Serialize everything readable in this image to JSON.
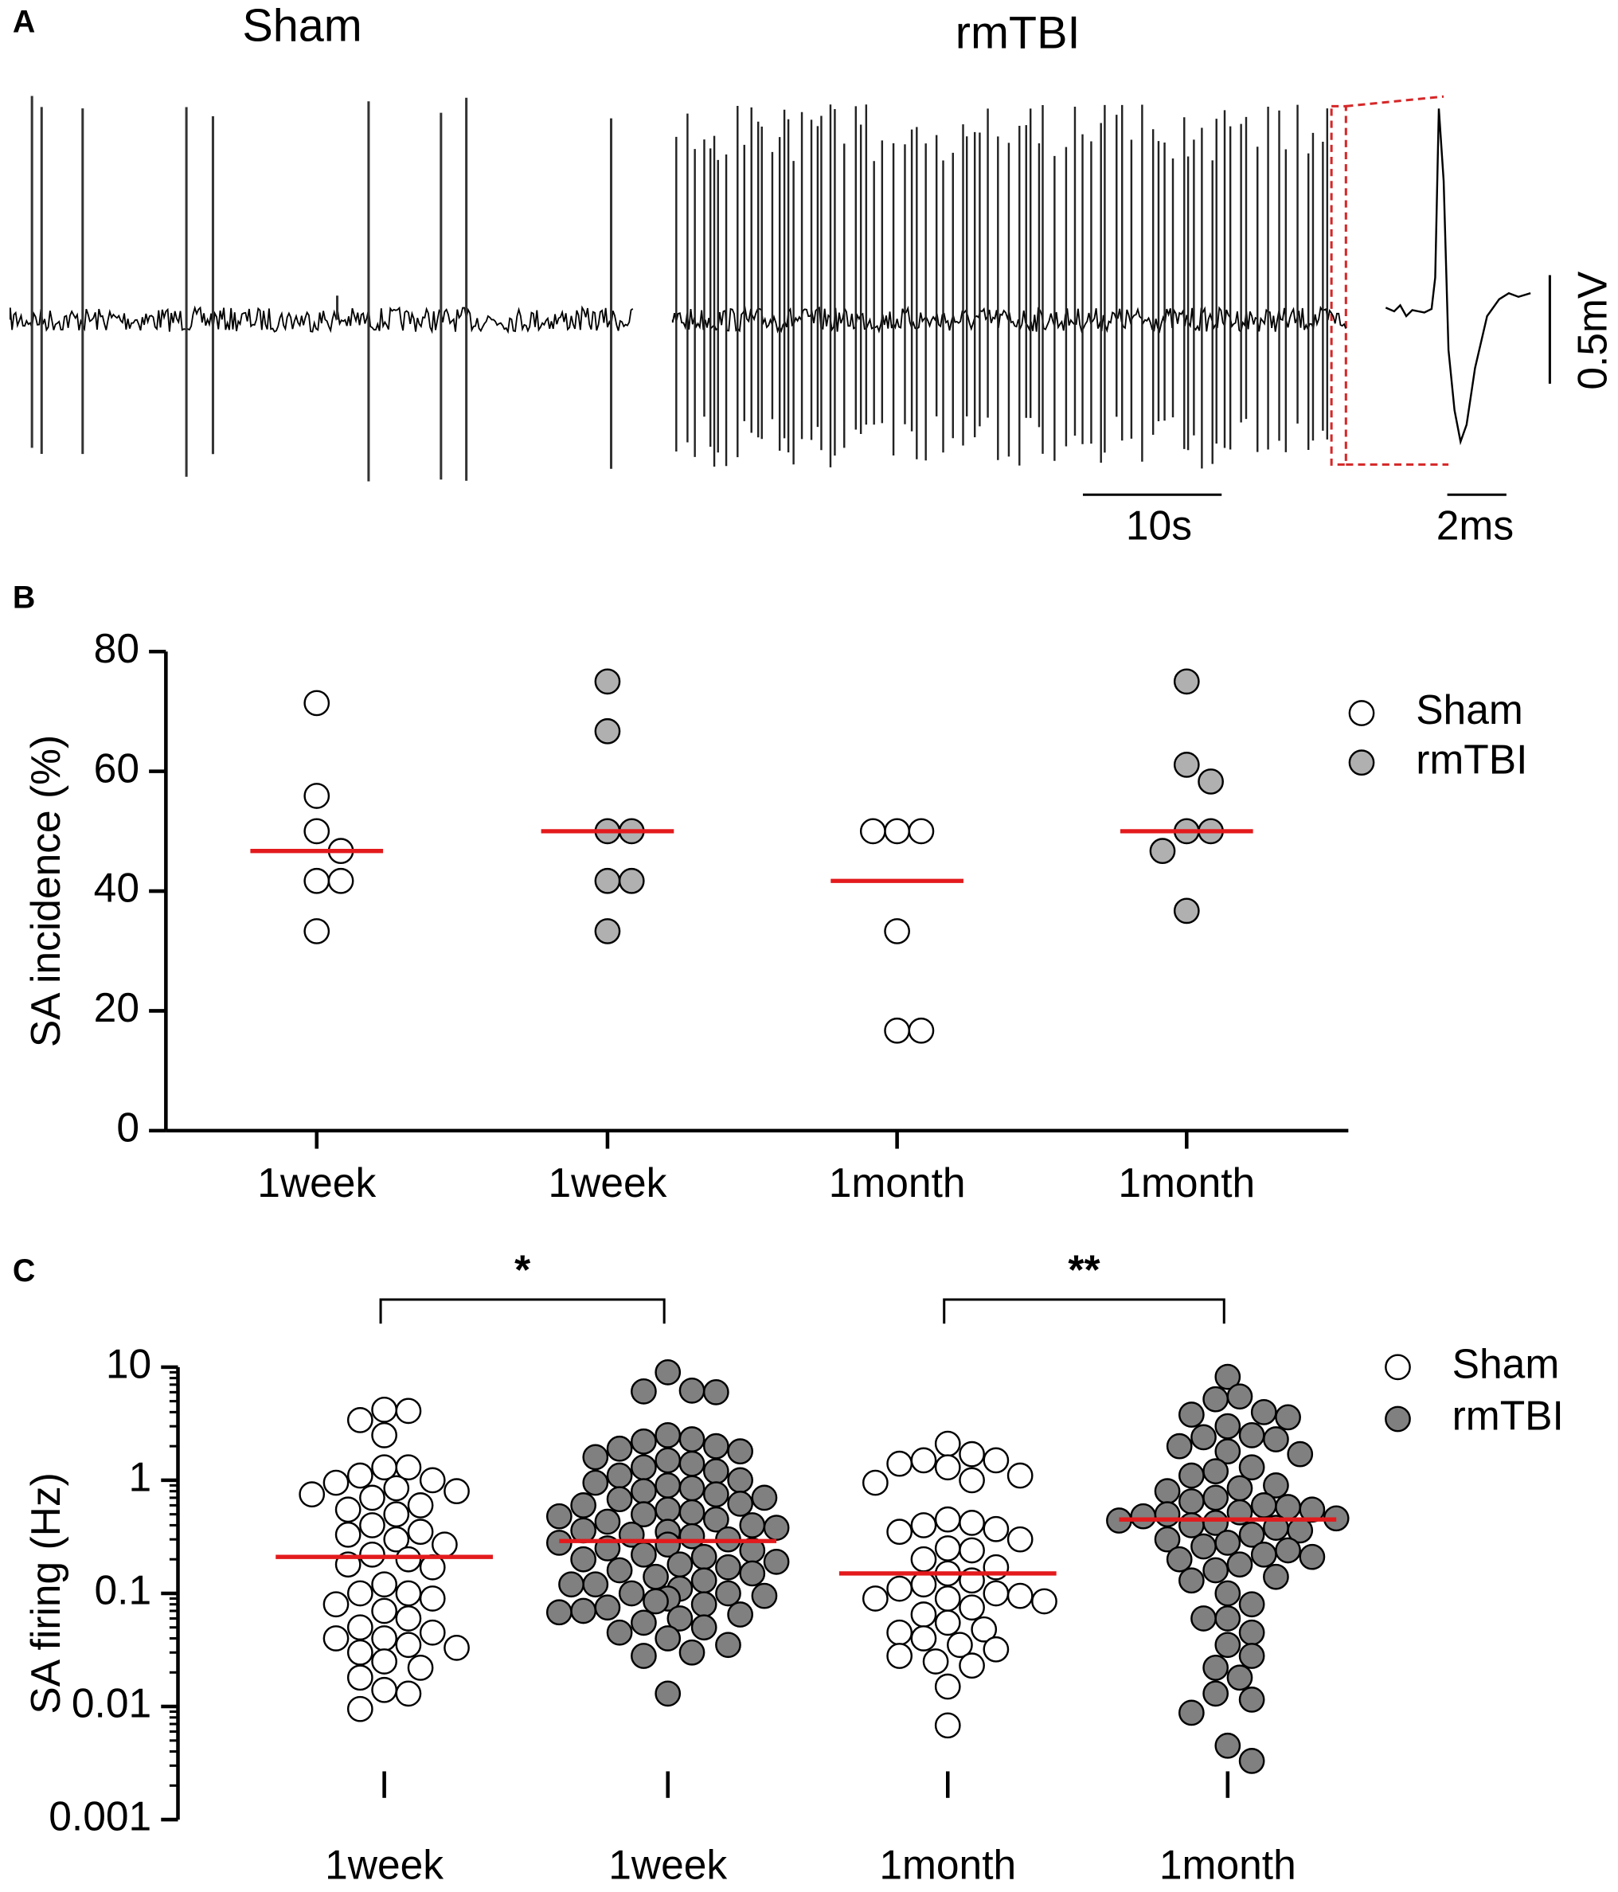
{
  "panel_a": {
    "label": "A",
    "left_title": "Sham",
    "right_title": "rmTBI",
    "time_scale": "10s",
    "inset_time_scale": "2ms",
    "voltage_scale": "0.5mV"
  },
  "chart_data": [
    {
      "type": "scatter",
      "panel": "B",
      "ylabel": "SA incidence (%)",
      "categories": [
        "1week",
        "1week",
        "1month",
        "1month"
      ],
      "ylim": [
        0,
        80
      ],
      "yticks": [
        0,
        20,
        40,
        60,
        80
      ],
      "log": false,
      "mean_color": "#e31a1c",
      "legend": "top-right",
      "series": [
        {
          "name": "Sham",
          "color": "#ffffff",
          "values": [
            [
              71.4,
              55.9,
              50,
              46.7,
              41.7,
              41.7,
              33.3
            ],
            null,
            [
              50,
              50,
              50,
              33.3,
              16.7,
              16.7
            ],
            null
          ],
          "means": [
            46.7,
            null,
            41.7,
            null
          ]
        },
        {
          "name": "rmTBI",
          "color": "#b0b0b0",
          "values": [
            null,
            [
              75,
              66.7,
              50,
              50,
              41.7,
              41.7,
              33.3
            ],
            null,
            [
              75,
              61.1,
              58.3,
              50,
              50,
              46.7,
              36.7
            ]
          ],
          "means": [
            null,
            50,
            null,
            50
          ]
        }
      ]
    },
    {
      "type": "scatter",
      "panel": "C",
      "ylabel": "SA firing (Hz)",
      "categories": [
        "1week",
        "1week",
        "1month",
        "1month"
      ],
      "ylim": [
        0.001,
        10
      ],
      "yticks": [
        0.001,
        0.01,
        0.1,
        1,
        10
      ],
      "log": true,
      "mean_color": "#e31a1c",
      "legend": "top-right",
      "annotations": [
        "*",
        "**"
      ],
      "series": [
        {
          "name": "Sham",
          "color": "#ffffff",
          "values": [
            [
              4.2,
              4.1,
              3.4,
              2.5,
              1.3,
              1.3,
              1.1,
              1.0,
              0.95,
              0.85,
              0.8,
              0.75,
              0.7,
              0.6,
              0.55,
              0.5,
              0.4,
              0.35,
              0.33,
              0.3,
              0.27,
              0.22,
              0.2,
              0.18,
              0.17,
              0.12,
              0.1,
              0.1,
              0.09,
              0.08,
              0.07,
              0.06,
              0.05,
              0.045,
              0.04,
              0.04,
              0.035,
              0.033,
              0.03,
              0.025,
              0.022,
              0.018,
              0.014,
              0.013,
              0.0095
            ],
            null,
            [
              2.1,
              1.7,
              1.5,
              1.5,
              1.4,
              1.3,
              1.1,
              1.0,
              0.95,
              0.45,
              0.42,
              0.4,
              0.37,
              0.35,
              0.3,
              0.25,
              0.24,
              0.2,
              0.17,
              0.15,
              0.13,
              0.12,
              0.11,
              0.1,
              0.095,
              0.09,
              0.09,
              0.085,
              0.075,
              0.065,
              0.055,
              0.048,
              0.045,
              0.04,
              0.035,
              0.032,
              0.028,
              0.025,
              0.023,
              0.015,
              0.0068
            ],
            null
          ],
          "means": [
            0.21,
            null,
            0.15,
            null
          ]
        },
        {
          "name": "rmTBI",
          "color": "#808080",
          "values": [
            null,
            [
              9,
              6.2,
              6.1,
              6.0,
              2.5,
              2.3,
              2.2,
              2.0,
              1.9,
              1.8,
              1.6,
              1.5,
              1.4,
              1.3,
              1.2,
              1.1,
              1.0,
              0.95,
              0.9,
              0.85,
              0.8,
              0.75,
              0.7,
              0.68,
              0.62,
              0.6,
              0.55,
              0.52,
              0.5,
              0.48,
              0.45,
              0.43,
              0.4,
              0.38,
              0.36,
              0.35,
              0.33,
              0.32,
              0.3,
              0.28,
              0.27,
              0.25,
              0.24,
              0.22,
              0.21,
              0.2,
              0.19,
              0.18,
              0.17,
              0.16,
              0.15,
              0.14,
              0.13,
              0.12,
              0.12,
              0.11,
              0.1,
              0.1,
              0.095,
              0.09,
              0.085,
              0.08,
              0.075,
              0.07,
              0.068,
              0.065,
              0.06,
              0.055,
              0.05,
              0.045,
              0.04,
              0.035,
              0.03,
              0.028,
              0.013
            ],
            null,
            [
              8.2,
              5.5,
              5.2,
              4.0,
              3.8,
              3.6,
              3.0,
              2.5,
              2.4,
              2.3,
              2.0,
              1.8,
              1.7,
              1.3,
              1.2,
              1.1,
              0.9,
              0.85,
              0.8,
              0.7,
              0.65,
              0.6,
              0.58,
              0.55,
              0.52,
              0.5,
              0.48,
              0.46,
              0.44,
              0.42,
              0.4,
              0.38,
              0.36,
              0.33,
              0.3,
              0.28,
              0.26,
              0.24,
              0.22,
              0.21,
              0.2,
              0.18,
              0.16,
              0.14,
              0.13,
              0.1,
              0.08,
              0.06,
              0.06,
              0.045,
              0.035,
              0.028,
              0.022,
              0.018,
              0.013,
              0.0115,
              0.0088,
              0.0045,
              0.0033
            ]
          ],
          "means": [
            null,
            0.29,
            null,
            0.45
          ]
        }
      ]
    }
  ]
}
